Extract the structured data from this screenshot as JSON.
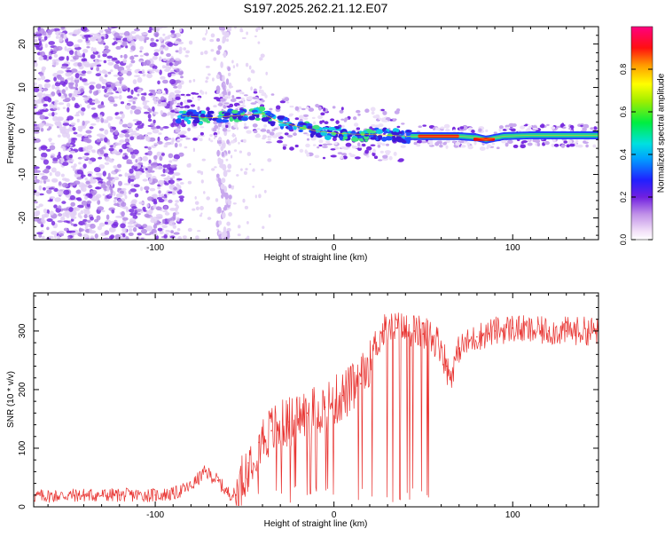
{
  "chart_data": [
    {
      "type": "heatmap",
      "title": "S197.2025.262.21.12.E07",
      "xlabel": "Height of straight line (km)",
      "ylabel": "Frequency (Hz)",
      "xlim": [
        -168,
        148
      ],
      "ylim": [
        -25,
        24
      ],
      "xticks": [
        -100,
        0,
        100
      ],
      "yticks": [
        -20,
        -10,
        0,
        10,
        20
      ],
      "colorbar": {
        "label": "Normalized spectral amplitude",
        "range": [
          0,
          1
        ],
        "ticks": [
          0.0,
          0.2,
          0.4,
          0.6,
          0.8
        ]
      },
      "ridge": {
        "description": "frequency ridge of strongest amplitude versus height",
        "x": [
          -85,
          -70,
          -55,
          -40,
          -30,
          -20,
          -10,
          0,
          10,
          20,
          30,
          40,
          50,
          60,
          70,
          80,
          85,
          95,
          110,
          130,
          148
        ],
        "y": [
          3.5,
          3.0,
          3.5,
          4.0,
          2.0,
          1.0,
          0.0,
          -0.5,
          -0.7,
          -0.8,
          -1.0,
          -1.2,
          -1.2,
          -1.2,
          -1.2,
          -1.5,
          -2.0,
          -1.2,
          -1.0,
          -1.0,
          -1.0
        ]
      },
      "noise_region_x": [
        -168,
        -85
      ],
      "noise_column_x": [
        -65,
        -58
      ]
    },
    {
      "type": "line",
      "xlabel": "Height of straight line (km)",
      "ylabel": "SNR (10 * v/v)",
      "xlim": [
        -168,
        148
      ],
      "ylim": [
        0,
        365
      ],
      "xticks": [
        -100,
        0,
        100
      ],
      "yticks": [
        0,
        100,
        200,
        300
      ],
      "color": "#e8322f",
      "series": [
        {
          "name": "SNR",
          "x": [
            -168,
            -140,
            -120,
            -100,
            -90,
            -80,
            -72,
            -65,
            -60,
            -55,
            -48,
            -42,
            -35,
            -25,
            -15,
            -5,
            5,
            15,
            22,
            28,
            35,
            45,
            50,
            55,
            60,
            63,
            65,
            70,
            80,
            90,
            100,
            110,
            120,
            130,
            148
          ],
          "y": [
            18,
            20,
            20,
            20,
            22,
            35,
            60,
            45,
            25,
            20,
            75,
            110,
            130,
            145,
            160,
            170,
            190,
            210,
            270,
            300,
            305,
            300,
            295,
            290,
            275,
            240,
            220,
            270,
            290,
            300,
            305,
            300,
            300,
            300,
            300
          ]
        }
      ]
    }
  ]
}
